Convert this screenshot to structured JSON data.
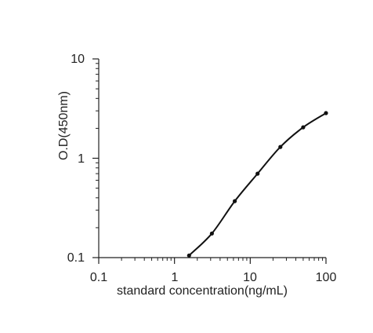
{
  "chart_data": {
    "type": "line",
    "xscale": "log",
    "yscale": "log",
    "xlim": [
      0.1,
      100
    ],
    "ylim": [
      0.1,
      10
    ],
    "xlabel": "standard concentration(ng/mL)",
    "ylabel": "O.D(450nm)",
    "x_ticks": [
      "0.1",
      "1",
      "10",
      "100"
    ],
    "y_ticks": [
      "0.1",
      "1",
      "10"
    ],
    "grid": false,
    "series": [
      {
        "x": [
          1.56,
          3.12,
          6.25,
          12.5,
          25,
          50,
          100
        ],
        "y": [
          0.105,
          0.175,
          0.37,
          0.7,
          1.3,
          2.05,
          2.85
        ]
      }
    ],
    "colors": {
      "line": "#111111",
      "axis": "#222222"
    }
  }
}
